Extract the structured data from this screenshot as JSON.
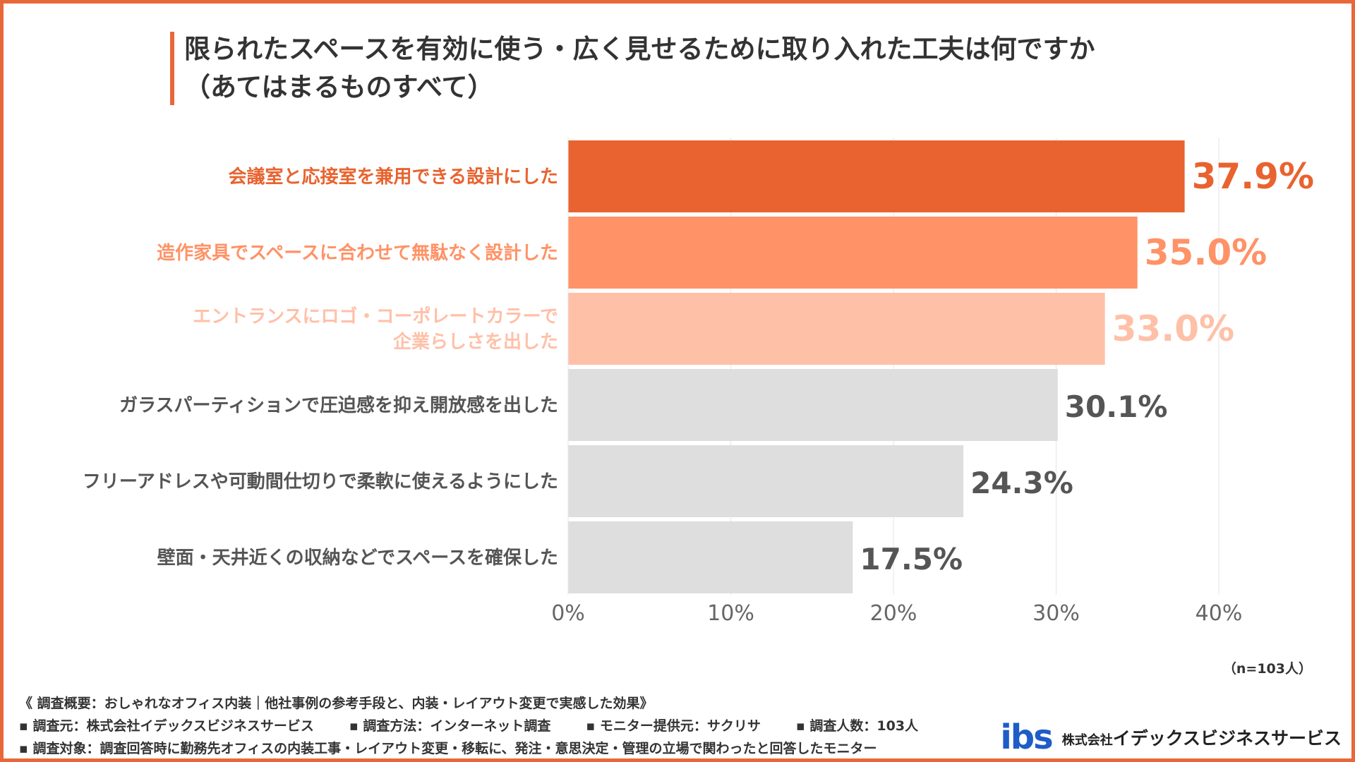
{
  "header": {
    "title_line1": "限られたスペースを有効に使う・広く見せるために取り入れた工夫は何ですか",
    "title_line2": "（あてはまるものすべて）"
  },
  "chart_data": {
    "type": "bar",
    "orientation": "horizontal",
    "categories": [
      [
        "会議室と応接室を兼用できる設計にした"
      ],
      [
        "造作家具でスペースに合わせて無駄なく設計した"
      ],
      [
        "エントランスにロゴ・コーポレートカラーで",
        "企業らしさを出した"
      ],
      [
        "ガラスパーティションで圧迫感を抑え開放感を出した"
      ],
      [
        "フリーアドレスや可動間仕切りで柔軟に使えるようにした"
      ],
      [
        "壁面・天井近くの収納などでスペースを確保した"
      ]
    ],
    "values": [
      37.9,
      35.0,
      33.0,
      30.1,
      24.3,
      17.5
    ],
    "value_labels": [
      "37.9%",
      "35.0%",
      "33.0%",
      "30.1%",
      "24.3%",
      "17.5%"
    ],
    "xlim": [
      0,
      40
    ],
    "x_ticks": [
      "0%",
      "10%",
      "20%",
      "30%",
      "40%"
    ],
    "grid": true,
    "bar_colors": [
      "#E8632F",
      "#FF9266",
      "#FFC0A8",
      "#DEDEDE",
      "#DEDEDE",
      "#DEDEDE"
    ],
    "label_colors": [
      "#E8632F",
      "#FF9266",
      "#FFC0A8",
      "#555555",
      "#555555",
      "#555555"
    ]
  },
  "sample_note": "（n=103人）",
  "footer": {
    "line1": "《 調査概要：おしゃれなオフィス内装｜他社事例の参考手段と、内装・レイアウト変更で実感した効果》",
    "items": [
      "▪ 調査元：株式会社イデックスビジネスサービス",
      "▪ 調査方法：インターネット調査",
      "▪ モニター提供元：サクリサ",
      "▪ 調査人数：103人"
    ],
    "line3": "▪ 調査対象：調査回答時に勤務先オフィスの内装工事・レイアウト変更・移転に、発注・意思決定・管理の立場で関わったと回答したモニター"
  },
  "logo": {
    "mark": "ibs",
    "company_prefix": "株式会社",
    "company_name": "イデックスビジネスサービス"
  },
  "colors": {
    "accent": "#E8683A",
    "text": "#333333",
    "logo_blue": "#1E5CC8"
  }
}
